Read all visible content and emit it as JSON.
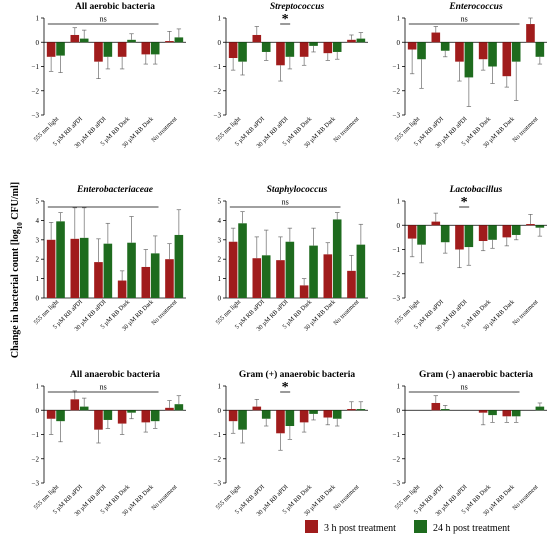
{
  "figure": {
    "ylabel_main": "Change in bacterial count [log",
    "ylabel_sub": "10",
    "ylabel_tail": " CFU/ml]",
    "colors": {
      "series_3h": "#a01c1c",
      "series_24h": "#1e6b1e"
    }
  },
  "legend": {
    "items": [
      {
        "label": "3 h post treatment",
        "color": "#a01c1c"
      },
      {
        "label": "24 h post treatment",
        "color": "#1e6b1e"
      }
    ]
  },
  "chart_data": [
    {
      "type": "bar",
      "title": "All aerobic bacteria",
      "italic": false,
      "categories": [
        "555 nm light",
        "5 µM RB aPDI",
        "30 µM RB aPDI",
        "5 µM RB Dark",
        "30 µM RB Dark",
        "No treatment"
      ],
      "ylim": [
        -3,
        1
      ],
      "yticks": [
        -3,
        -2,
        -1,
        0,
        1
      ],
      "series": [
        {
          "name": "3 h post treatment",
          "values": [
            -0.6,
            0.3,
            -0.8,
            -0.6,
            -0.5,
            0.05
          ],
          "errors": [
            0.6,
            0.3,
            0.7,
            0.5,
            0.4,
            0.4
          ]
        },
        {
          "name": "24 h post treatment",
          "values": [
            -0.55,
            0.15,
            -0.6,
            0.1,
            -0.5,
            0.2
          ],
          "errors": [
            0.7,
            0.35,
            0.5,
            0.25,
            0.4,
            0.35
          ]
        }
      ],
      "annotation": {
        "text": "ns",
        "bracket": [
          0,
          4
        ]
      }
    },
    {
      "type": "bar",
      "title": "Streptococcus",
      "italic": true,
      "categories": [
        "555 nm light",
        "5 µM RB aPDI",
        "30 µM RB aPDI",
        "5 µM RB Dark",
        "30 µM RB Dark",
        "No treatment"
      ],
      "ylim": [
        -3,
        1
      ],
      "yticks": [
        -3,
        -2,
        -1,
        0,
        1
      ],
      "series": [
        {
          "name": "3 h post treatment",
          "values": [
            -0.65,
            0.3,
            -0.95,
            -0.6,
            -0.45,
            0.1
          ],
          "errors": [
            0.5,
            0.35,
            0.65,
            0.35,
            0.3,
            0.2
          ]
        },
        {
          "name": "24 h post treatment",
          "values": [
            -0.8,
            -0.4,
            -0.6,
            -0.15,
            -0.4,
            0.15
          ],
          "errors": [
            0.55,
            0.35,
            0.5,
            0.25,
            0.3,
            0.25
          ]
        }
      ],
      "annotation": {
        "text": "*",
        "bracket": [
          2,
          2
        ]
      }
    },
    {
      "type": "bar",
      "title": "Enterococcus",
      "italic": true,
      "categories": [
        "555 nm light",
        "5 µM RB aPDI",
        "30 µM RB aPDI",
        "5 µM RB Dark",
        "30 µM RB Dark",
        "No treatment"
      ],
      "ylim": [
        -3,
        1
      ],
      "yticks": [
        -3,
        -2,
        -1,
        0,
        1
      ],
      "series": [
        {
          "name": "3 h post treatment",
          "values": [
            -0.3,
            0.4,
            -0.8,
            -0.7,
            -1.4,
            0.75
          ],
          "errors": [
            1.0,
            0.25,
            0.8,
            0.45,
            0.45,
            0.25
          ]
        },
        {
          "name": "24 h post treatment",
          "values": [
            -0.7,
            -0.35,
            -1.45,
            -1.0,
            -0.8,
            -0.6
          ],
          "errors": [
            1.2,
            0.25,
            1.2,
            0.7,
            1.6,
            0.3
          ]
        }
      ],
      "annotation": {
        "text": "ns",
        "bracket": [
          0,
          4
        ]
      }
    },
    {
      "type": "bar",
      "title": "Enterobacteriaceae",
      "italic": true,
      "categories": [
        "555 nm light",
        "5 µM RB aPDI",
        "30 µM RB aPDI",
        "5 µM RB Dark",
        "30 µM RB Dark",
        "No treatment"
      ],
      "ylim": [
        0,
        5
      ],
      "yticks": [
        0,
        1,
        2,
        3,
        4,
        5
      ],
      "series": [
        {
          "name": "3 h post treatment",
          "values": [
            3.0,
            3.05,
            1.85,
            0.9,
            1.6,
            2.0
          ],
          "errors": [
            0.9,
            1.6,
            1.2,
            0.5,
            0.9,
            0.8
          ]
        },
        {
          "name": "24 h post treatment",
          "values": [
            3.95,
            3.1,
            2.8,
            2.85,
            2.3,
            3.25
          ],
          "errors": [
            0.45,
            1.55,
            1.05,
            1.35,
            0.9,
            1.3
          ]
        }
      ],
      "annotation": {
        "text": "",
        "bracket": [
          0,
          4
        ]
      }
    },
    {
      "type": "bar",
      "title": "Staphylococcus",
      "italic": true,
      "categories": [
        "555 nm light",
        "5 µM RB aPDI",
        "30 µM RB aPDI",
        "5 µM RB Dark",
        "30 µM RB Dark",
        "No treatment"
      ],
      "ylim": [
        0,
        5
      ],
      "yticks": [
        0,
        1,
        2,
        3,
        4,
        5
      ],
      "series": [
        {
          "name": "3 h post treatment",
          "values": [
            2.9,
            2.05,
            1.95,
            0.65,
            2.25,
            1.4
          ],
          "errors": [
            0.7,
            1.1,
            1.2,
            0.35,
            0.6,
            0.8
          ]
        },
        {
          "name": "24 h post treatment",
          "values": [
            3.85,
            2.2,
            2.9,
            2.7,
            4.05,
            2.75
          ],
          "errors": [
            0.6,
            1.3,
            0.7,
            0.9,
            0.35,
            1.05
          ]
        }
      ],
      "annotation": {
        "text": "ns",
        "bracket": [
          0,
          4
        ]
      }
    },
    {
      "type": "bar",
      "title": "Lactobacillus",
      "italic": true,
      "categories": [
        "555 nm light",
        "5 µM RB aPDI",
        "30 µM RB aPDI",
        "5 µM RB Dark",
        "30 µM RB Dark",
        "No treatment"
      ],
      "ylim": [
        -3,
        1
      ],
      "yticks": [
        -3,
        -2,
        -1,
        0,
        1
      ],
      "series": [
        {
          "name": "3 h post treatment",
          "values": [
            -0.55,
            0.15,
            -1.0,
            -0.65,
            -0.5,
            0.05
          ],
          "errors": [
            0.75,
            0.35,
            0.75,
            0.4,
            0.35,
            0.4
          ]
        },
        {
          "name": "24 h post treatment",
          "values": [
            -0.8,
            -0.7,
            -0.9,
            -0.6,
            -0.4,
            -0.1
          ],
          "errors": [
            0.75,
            0.45,
            0.75,
            0.35,
            0.2,
            0.35
          ]
        }
      ],
      "annotation": {
        "text": "*",
        "bracket": [
          2,
          2
        ]
      }
    },
    {
      "type": "bar",
      "title": "All anaerobic bacteria",
      "italic": false,
      "categories": [
        "555 nm light",
        "5 µM RB aPDI",
        "30 µM RB aPDI",
        "5 µM RB Dark",
        "30 µM RB Dark",
        "No treatment"
      ],
      "ylim": [
        -3,
        1
      ],
      "yticks": [
        -3,
        -2,
        -1,
        0,
        1
      ],
      "series": [
        {
          "name": "3 h post treatment",
          "values": [
            -0.35,
            0.45,
            -0.8,
            -0.55,
            -0.5,
            0.1
          ],
          "errors": [
            0.65,
            0.35,
            0.55,
            0.45,
            0.4,
            0.3
          ]
        },
        {
          "name": "24 h post treatment",
          "values": [
            -0.45,
            0.15,
            -0.4,
            -0.1,
            -0.45,
            0.25
          ],
          "errors": [
            0.85,
            0.35,
            0.35,
            0.25,
            0.3,
            0.35
          ]
        }
      ],
      "annotation": {
        "text": "ns",
        "bracket": [
          0,
          4
        ]
      }
    },
    {
      "type": "bar",
      "title": "Gram (+) anaerobic bacteria",
      "italic": false,
      "categories": [
        "555 nm light",
        "5 µM RB aPDI",
        "30 µM RB aPDI",
        "5 µM RB Dark",
        "30 µM RB Dark",
        "No treatment"
      ],
      "ylim": [
        -3,
        1
      ],
      "yticks": [
        -3,
        -2,
        -1,
        0,
        1
      ],
      "series": [
        {
          "name": "3 h post treatment",
          "values": [
            -0.45,
            0.15,
            -0.95,
            -0.5,
            -0.3,
            0.05
          ],
          "errors": [
            0.5,
            0.3,
            0.7,
            0.4,
            0.3,
            0.3
          ]
        },
        {
          "name": "24 h post treatment",
          "values": [
            -0.8,
            -0.35,
            -0.65,
            -0.15,
            -0.35,
            0.05
          ],
          "errors": [
            0.55,
            0.3,
            0.55,
            0.25,
            0.3,
            0.3
          ]
        }
      ],
      "annotation": {
        "text": "*",
        "bracket": [
          2,
          2
        ]
      }
    },
    {
      "type": "bar",
      "title": "Gram (-) anaerobic bacteria",
      "italic": false,
      "categories": [
        "555 nm light",
        "5 µM RB aPDI",
        "30 µM RB aPDI",
        "5 µM RB Dark",
        "30 µM RB Dark",
        "No treatment"
      ],
      "ylim": [
        -3,
        1
      ],
      "yticks": [
        -3,
        -2,
        -1,
        0,
        1
      ],
      "series": [
        {
          "name": "3 h post treatment",
          "values": [
            0.0,
            0.3,
            0.0,
            -0.1,
            -0.25,
            0.0
          ],
          "errors": [
            0.0,
            0.3,
            0.0,
            0.5,
            0.25,
            0.0
          ]
        },
        {
          "name": "24 h post treatment",
          "values": [
            0.0,
            0.05,
            0.0,
            -0.2,
            -0.25,
            0.15
          ],
          "errors": [
            0.0,
            0.15,
            0.0,
            0.3,
            0.25,
            0.15
          ]
        }
      ],
      "annotation": {
        "text": "ns",
        "bracket": [
          0,
          4
        ]
      }
    }
  ]
}
